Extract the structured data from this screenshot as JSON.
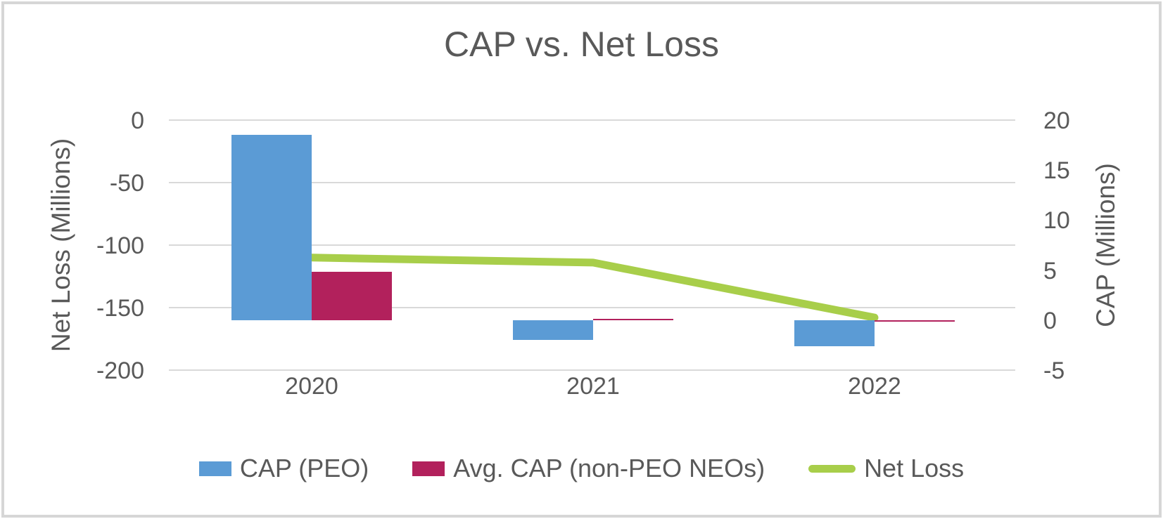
{
  "frame": {
    "border_color": "#D6D6D6",
    "background": "#FFFFFF"
  },
  "chart_data": {
    "type": "bar+line",
    "title": "CAP vs. Net Loss",
    "categories": [
      "2020",
      "2021",
      "2022"
    ],
    "series": [
      {
        "name": "CAP (PEO)",
        "kind": "bar",
        "axis": "right",
        "color": "#5B9BD5",
        "values": [
          18.5,
          -2.0,
          -2.6
        ]
      },
      {
        "name": "Avg. CAP (non-PEO NEOs)",
        "kind": "bar",
        "axis": "right",
        "color": "#B2215C",
        "values": [
          4.8,
          0.1,
          -0.1
        ]
      },
      {
        "name": "Net Loss",
        "kind": "line",
        "axis": "left",
        "color": "#A8CE4A",
        "values": [
          -110,
          -114,
          -158
        ]
      }
    ],
    "left_axis": {
      "title": "Net Loss (Millions)",
      "ticks": [
        0,
        -50,
        -100,
        -150,
        -200
      ],
      "range": [
        -200,
        0
      ]
    },
    "right_axis": {
      "title": "CAP (Millions)",
      "ticks": [
        20,
        15,
        10,
        5,
        0,
        -5
      ],
      "range": [
        -5,
        20
      ]
    },
    "grid": true,
    "legend_position": "bottom",
    "text_color": "#595959",
    "grid_color": "#D9D9D9"
  }
}
